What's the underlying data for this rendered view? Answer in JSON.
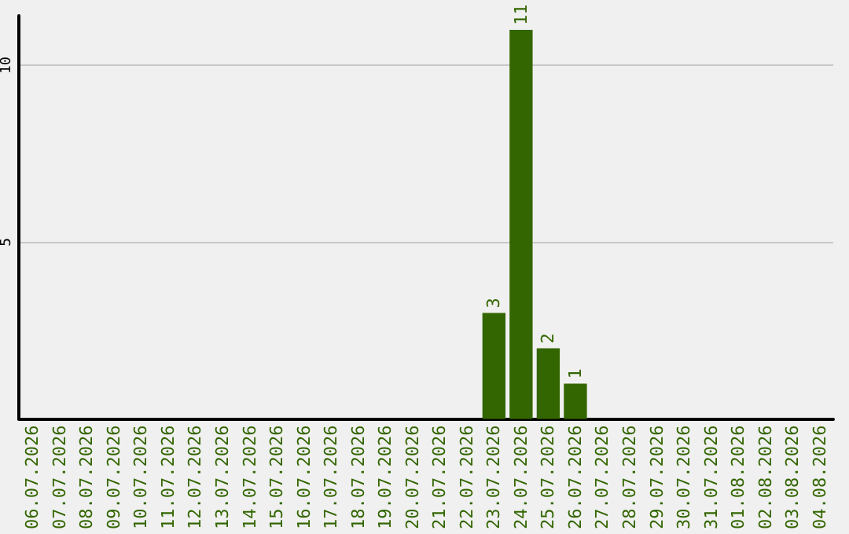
{
  "chart_data": {
    "type": "bar",
    "categories": [
      "06.07.2026",
      "07.07.2026",
      "08.07.2026",
      "09.07.2026",
      "10.07.2026",
      "11.07.2026",
      "12.07.2026",
      "13.07.2026",
      "14.07.2026",
      "15.07.2026",
      "16.07.2026",
      "17.07.2026",
      "18.07.2026",
      "19.07.2026",
      "20.07.2026",
      "21.07.2026",
      "22.07.2026",
      "23.07.2026",
      "24.07.2026",
      "25.07.2026",
      "26.07.2026",
      "27.07.2026",
      "28.07.2026",
      "29.07.2026",
      "30.07.2026",
      "31.07.2026",
      "01.08.2026",
      "02.08.2026",
      "03.08.2026",
      "04.08.2026"
    ],
    "values": [
      0,
      0,
      0,
      0,
      0,
      0,
      0,
      0,
      0,
      0,
      0,
      0,
      0,
      0,
      0,
      0,
      0,
      3,
      11,
      2,
      1,
      0,
      0,
      0,
      0,
      0,
      0,
      0,
      0,
      0
    ],
    "value_labels": [
      null,
      null,
      null,
      null,
      null,
      null,
      null,
      null,
      null,
      null,
      null,
      null,
      null,
      null,
      null,
      null,
      null,
      "3",
      "11",
      "2",
      "1",
      null,
      null,
      null,
      null,
      null,
      null,
      null,
      null,
      null
    ],
    "color": "#336600",
    "ylim": [
      0,
      11.4
    ],
    "yticks": [
      5,
      10
    ],
    "grid": "y"
  }
}
